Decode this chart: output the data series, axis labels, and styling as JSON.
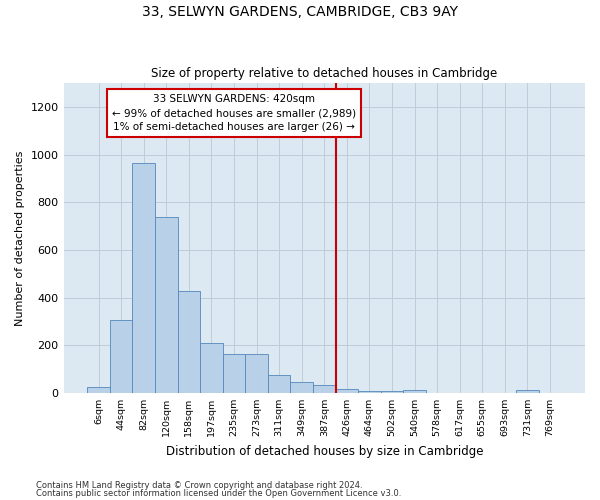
{
  "title": "33, SELWYN GARDENS, CAMBRIDGE, CB3 9AY",
  "subtitle": "Size of property relative to detached houses in Cambridge",
  "xlabel": "Distribution of detached houses by size in Cambridge",
  "ylabel": "Number of detached properties",
  "bar_labels": [
    "6sqm",
    "44sqm",
    "82sqm",
    "120sqm",
    "158sqm",
    "197sqm",
    "235sqm",
    "273sqm",
    "311sqm",
    "349sqm",
    "387sqm",
    "426sqm",
    "464sqm",
    "502sqm",
    "540sqm",
    "578sqm",
    "617sqm",
    "655sqm",
    "693sqm",
    "731sqm",
    "769sqm"
  ],
  "bar_values": [
    25,
    305,
    965,
    740,
    430,
    210,
    165,
    165,
    75,
    48,
    35,
    18,
    10,
    10,
    13,
    0,
    0,
    0,
    0,
    13,
    0
  ],
  "bar_color": "#b8d0e8",
  "bar_edge_color": "#5588bb",
  "grid_color": "#c0ccd8",
  "bg_color": "#dce8f2",
  "vline_color": "#cc0000",
  "annotation_text": "33 SELWYN GARDENS: 420sqm\n← 99% of detached houses are smaller (2,989)\n1% of semi-detached houses are larger (26) →",
  "annotation_box_edgecolor": "#cc0000",
  "footnote1": "Contains HM Land Registry data © Crown copyright and database right 2024.",
  "footnote2": "Contains public sector information licensed under the Open Government Licence v3.0.",
  "ylim": [
    0,
    1300
  ],
  "yticks": [
    0,
    200,
    400,
    600,
    800,
    1000,
    1200
  ],
  "vline_index": 11
}
